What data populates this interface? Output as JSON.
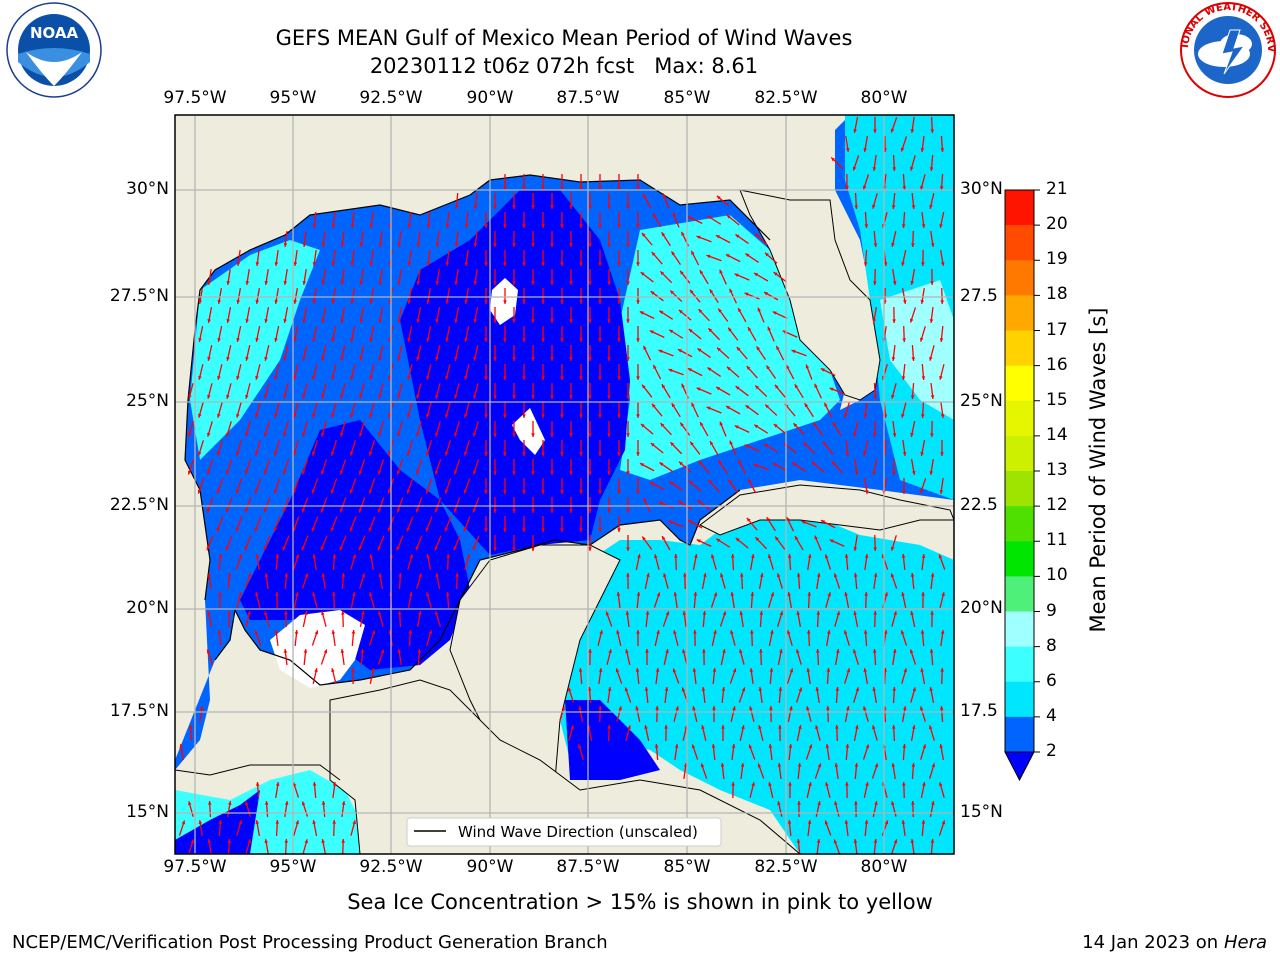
{
  "header": {
    "title_line1": "GEFS MEAN Gulf of Mexico Mean Period of Wind Waves",
    "title_line2": "20230112 t06z 072h fcst   Max: 8.61"
  },
  "logos": {
    "left": {
      "name": "noaa-logo",
      "text": "NOAA",
      "ring_text": "NATIONAL OCEANIC AND ATMOSPHERIC ADMINISTRATION · U.S. DEPARTMENT OF COMMERCE"
    },
    "right": {
      "name": "nws-logo",
      "ring_text": "NATIONAL WEATHER SERVICE"
    }
  },
  "map": {
    "lon_ticks": [
      "97.5°W",
      "95°W",
      "92.5°W",
      "90°W",
      "87.5°W",
      "85°W",
      "82.5°W",
      "80°W"
    ],
    "lat_ticks_left": [
      "30°N",
      "27.5°N",
      "25°N",
      "22.5°N",
      "20°N",
      "17.5°N",
      "15°N"
    ],
    "lat_ticks_right": [
      "30°N",
      "27.5",
      "25°N",
      "22.5",
      "20°N",
      "17.5",
      "15°N"
    ],
    "legend": "Wind Wave Direction (unscaled)",
    "colors": {
      "land": "#eeecdc",
      "grid": "#b4b4b4",
      "vector": "#ff0000",
      "coast": "#000000"
    }
  },
  "colorbar": {
    "label": "Mean Period of Wind Waves [s]",
    "ticks": [
      "2",
      "4",
      "6",
      "8",
      "9",
      "10",
      "11",
      "12",
      "13",
      "14",
      "15",
      "16",
      "17",
      "18",
      "19",
      "20",
      "21"
    ],
    "colors": [
      "#0000ff",
      "#0064ff",
      "#00e6ff",
      "#3cffff",
      "#a0ffff",
      "#4ff07a",
      "#00e600",
      "#4fe000",
      "#9fe400",
      "#cdf000",
      "#e6f500",
      "#ffff00",
      "#ffd200",
      "#ffa800",
      "#ff7800",
      "#ff4b00",
      "#ff1400",
      "#ff0000"
    ]
  },
  "footer": {
    "note": "Sea Ice Concentration > 15% is shown in pink to yellow",
    "left": "NCEP/EMC/Verification Post Processing Product Generation Branch",
    "right_date": "14 Jan 2023 on",
    "right_host": "Hera"
  }
}
